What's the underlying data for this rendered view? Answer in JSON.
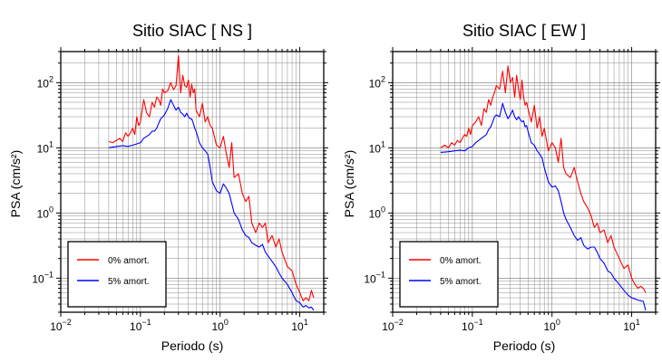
{
  "chart_data": [
    {
      "type": "line",
      "title": "Sitio SIAC [ NS ]",
      "xlabel": "Periodo (s)",
      "ylabel": "PSA (cm/s²)",
      "xscale": "log",
      "yscale": "log",
      "xlim": [
        0.01,
        20
      ],
      "ylim": [
        0.03,
        300
      ],
      "grid": true,
      "legend_position": "bottom-left",
      "x_ticks": [
        {
          "base": "10",
          "exp": "−2"
        },
        {
          "base": "10",
          "exp": "−1"
        },
        {
          "base": "10",
          "exp": "0"
        },
        {
          "base": "10",
          "exp": "1"
        }
      ],
      "y_ticks": [
        {
          "base": "10",
          "exp": "−1"
        },
        {
          "base": "10",
          "exp": "0"
        },
        {
          "base": "10",
          "exp": "1"
        },
        {
          "base": "10",
          "exp": "2"
        }
      ],
      "series": [
        {
          "name": "0% amort.",
          "color": "#ff0000",
          "x": [
            0.04,
            0.045,
            0.05,
            0.055,
            0.06,
            0.065,
            0.07,
            0.075,
            0.08,
            0.085,
            0.09,
            0.095,
            0.1,
            0.11,
            0.12,
            0.13,
            0.14,
            0.15,
            0.16,
            0.17,
            0.18,
            0.19,
            0.2,
            0.22,
            0.24,
            0.26,
            0.28,
            0.3,
            0.32,
            0.34,
            0.36,
            0.38,
            0.4,
            0.42,
            0.44,
            0.46,
            0.48,
            0.5,
            0.55,
            0.6,
            0.65,
            0.7,
            0.75,
            0.8,
            0.9,
            1.0,
            1.1,
            1.2,
            1.3,
            1.4,
            1.5,
            1.7,
            1.9,
            2.1,
            2.3,
            2.5,
            2.8,
            3.1,
            3.4,
            3.7,
            4.0,
            4.5,
            5.0,
            5.5,
            6.0,
            7.0,
            8.0,
            9.0,
            10.0,
            11.0,
            12.0,
            13.0,
            14.0,
            15.0
          ],
          "values": [
            12.5,
            12.0,
            13.0,
            14.0,
            12.5,
            17.0,
            15.0,
            17.0,
            20.0,
            16.0,
            30.0,
            22.0,
            25.0,
            55.0,
            34.0,
            30.0,
            50.0,
            42.0,
            60.0,
            55.0,
            45.0,
            80.0,
            70.0,
            75.0,
            100.0,
            78.0,
            90.0,
            260.0,
            70.0,
            130.0,
            90.0,
            85.0,
            110.0,
            60.0,
            95.0,
            70.0,
            80.0,
            38.0,
            30.0,
            48.0,
            25.0,
            30.0,
            22.0,
            20.0,
            11.0,
            10.0,
            15.0,
            8.0,
            5.0,
            12.0,
            3.5,
            4.0,
            2.0,
            1.5,
            1.8,
            0.7,
            0.5,
            0.7,
            0.6,
            0.7,
            0.35,
            0.45,
            0.3,
            0.4,
            0.25,
            0.15,
            0.13,
            0.08,
            0.06,
            0.045,
            0.05,
            0.045,
            0.065,
            0.05
          ]
        },
        {
          "name": "5% amort.",
          "color": "#0000ff",
          "x": [
            0.04,
            0.05,
            0.06,
            0.07,
            0.08,
            0.09,
            0.1,
            0.11,
            0.12,
            0.13,
            0.14,
            0.15,
            0.16,
            0.17,
            0.18,
            0.19,
            0.2,
            0.22,
            0.24,
            0.26,
            0.28,
            0.3,
            0.32,
            0.34,
            0.36,
            0.38,
            0.4,
            0.42,
            0.44,
            0.46,
            0.48,
            0.5,
            0.55,
            0.6,
            0.65,
            0.7,
            0.75,
            0.8,
            0.9,
            1.0,
            1.1,
            1.2,
            1.3,
            1.4,
            1.5,
            1.7,
            1.9,
            2.1,
            2.3,
            2.5,
            2.8,
            3.1,
            3.4,
            3.7,
            4.0,
            4.5,
            5.0,
            5.5,
            6.0,
            7.0,
            8.0,
            9.0,
            10.0,
            11.0,
            12.0,
            13.0,
            14.0,
            15.0
          ],
          "values": [
            10.0,
            10.5,
            10.8,
            10.5,
            11.0,
            11.5,
            12.0,
            14.0,
            15.0,
            16.0,
            18.0,
            18.0,
            20.0,
            24.0,
            28.0,
            30.0,
            32.0,
            40.0,
            55.0,
            45.0,
            38.0,
            42.0,
            35.0,
            33.0,
            30.0,
            34.0,
            30.0,
            28.0,
            28.0,
            24.0,
            20.0,
            18.0,
            12.0,
            10.0,
            9.0,
            8.0,
            5.0,
            3.0,
            2.2,
            2.0,
            2.8,
            2.4,
            2.0,
            1.4,
            1.0,
            0.8,
            0.55,
            0.45,
            0.42,
            0.35,
            0.32,
            0.3,
            0.33,
            0.25,
            0.22,
            0.18,
            0.15,
            0.12,
            0.1,
            0.08,
            0.06,
            0.045,
            0.042,
            0.036,
            0.038,
            0.035,
            0.036,
            0.032
          ]
        }
      ]
    },
    {
      "type": "line",
      "title": "Sitio SIAC [ EW ]",
      "xlabel": "Periodo (s)",
      "ylabel": "PSA (cm/s²)",
      "xscale": "log",
      "yscale": "log",
      "xlim": [
        0.01,
        20
      ],
      "ylim": [
        0.03,
        300
      ],
      "grid": true,
      "legend_position": "bottom-left",
      "x_ticks": [
        {
          "base": "10",
          "exp": "−2"
        },
        {
          "base": "10",
          "exp": "−1"
        },
        {
          "base": "10",
          "exp": "0"
        },
        {
          "base": "10",
          "exp": "1"
        }
      ],
      "y_ticks": [
        {
          "base": "10",
          "exp": "−1"
        },
        {
          "base": "10",
          "exp": "0"
        },
        {
          "base": "10",
          "exp": "1"
        },
        {
          "base": "10",
          "exp": "2"
        }
      ],
      "series": [
        {
          "name": "0% amort.",
          "color": "#ff0000",
          "x": [
            0.04,
            0.045,
            0.05,
            0.055,
            0.06,
            0.065,
            0.07,
            0.075,
            0.08,
            0.085,
            0.09,
            0.095,
            0.1,
            0.11,
            0.12,
            0.13,
            0.14,
            0.15,
            0.16,
            0.17,
            0.18,
            0.19,
            0.2,
            0.22,
            0.24,
            0.26,
            0.28,
            0.3,
            0.32,
            0.34,
            0.36,
            0.38,
            0.4,
            0.42,
            0.44,
            0.46,
            0.48,
            0.5,
            0.55,
            0.6,
            0.65,
            0.7,
            0.75,
            0.8,
            0.9,
            1.0,
            1.1,
            1.2,
            1.3,
            1.4,
            1.5,
            1.7,
            1.9,
            2.1,
            2.3,
            2.5,
            2.8,
            3.1,
            3.4,
            3.7,
            4.0,
            4.5,
            5.0,
            5.5,
            6.0,
            7.0,
            8.0,
            9.0,
            10.0,
            11.0,
            12.0,
            13.0,
            14.0,
            15.0
          ],
          "values": [
            10.0,
            11.0,
            10.0,
            12.0,
            11.0,
            13.0,
            12.0,
            14.0,
            16.0,
            15.0,
            20.0,
            16.0,
            22.0,
            25.0,
            30.0,
            22.0,
            40.0,
            35.0,
            55.0,
            45.0,
            60.0,
            70.0,
            90.0,
            80.0,
            150.0,
            70.0,
            180.0,
            100.0,
            120.0,
            60.0,
            130.0,
            80.0,
            55.0,
            110.0,
            60.0,
            45.0,
            50.0,
            40.0,
            25.0,
            45.0,
            20.0,
            30.0,
            15.0,
            20.0,
            9.0,
            12.0,
            10.0,
            6.0,
            14.0,
            5.0,
            4.0,
            3.5,
            5.0,
            3.0,
            2.0,
            1.5,
            1.2,
            0.9,
            0.6,
            0.7,
            0.5,
            0.55,
            0.35,
            0.45,
            0.3,
            0.2,
            0.14,
            0.16,
            0.1,
            0.08,
            0.07,
            0.075,
            0.07,
            0.06
          ]
        },
        {
          "name": "5% amort.",
          "color": "#0000ff",
          "x": [
            0.04,
            0.05,
            0.06,
            0.07,
            0.08,
            0.09,
            0.1,
            0.11,
            0.12,
            0.13,
            0.14,
            0.15,
            0.16,
            0.17,
            0.18,
            0.19,
            0.2,
            0.22,
            0.24,
            0.26,
            0.28,
            0.3,
            0.32,
            0.34,
            0.36,
            0.38,
            0.4,
            0.42,
            0.44,
            0.46,
            0.48,
            0.5,
            0.55,
            0.6,
            0.65,
            0.7,
            0.75,
            0.8,
            0.9,
            1.0,
            1.1,
            1.2,
            1.3,
            1.4,
            1.5,
            1.7,
            1.9,
            2.1,
            2.3,
            2.5,
            2.8,
            3.1,
            3.4,
            3.7,
            4.0,
            4.5,
            5.0,
            5.5,
            6.0,
            7.0,
            8.0,
            9.0,
            10.0,
            11.0,
            12.0,
            13.0,
            14.0,
            15.0
          ],
          "values": [
            8.5,
            8.7,
            9.0,
            9.2,
            9.0,
            10.0,
            10.5,
            12.0,
            13.0,
            14.0,
            15.0,
            16.0,
            19.0,
            21.0,
            25.0,
            30.0,
            32.0,
            30.0,
            48.0,
            35.0,
            28.0,
            32.0,
            38.0,
            30.0,
            27.0,
            30.0,
            27.0,
            25.0,
            26.0,
            21.0,
            22.0,
            18.0,
            12.0,
            11.0,
            9.0,
            8.0,
            7.0,
            5.0,
            3.0,
            2.5,
            2.6,
            2.2,
            1.5,
            1.0,
            0.8,
            0.6,
            0.45,
            0.38,
            0.42,
            0.32,
            0.28,
            0.3,
            0.3,
            0.25,
            0.2,
            0.17,
            0.13,
            0.12,
            0.1,
            0.08,
            0.065,
            0.055,
            0.05,
            0.048,
            0.046,
            0.045,
            0.044,
            0.032
          ]
        }
      ]
    }
  ]
}
